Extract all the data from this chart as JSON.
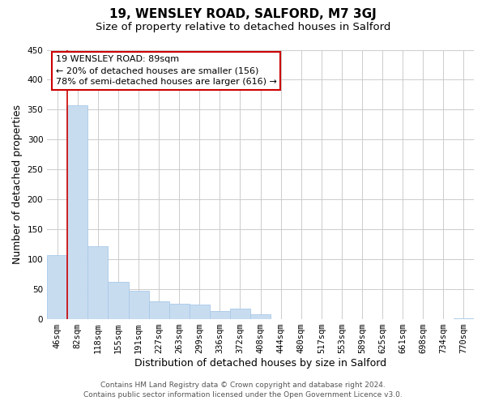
{
  "title": "19, WENSLEY ROAD, SALFORD, M7 3GJ",
  "subtitle": "Size of property relative to detached houses in Salford",
  "xlabel": "Distribution of detached houses by size in Salford",
  "ylabel": "Number of detached properties",
  "categories": [
    "46sqm",
    "82sqm",
    "118sqm",
    "155sqm",
    "191sqm",
    "227sqm",
    "263sqm",
    "299sqm",
    "336sqm",
    "372sqm",
    "408sqm",
    "444sqm",
    "480sqm",
    "517sqm",
    "553sqm",
    "589sqm",
    "625sqm",
    "661sqm",
    "698sqm",
    "734sqm",
    "770sqm"
  ],
  "values": [
    107,
    357,
    122,
    62,
    48,
    30,
    26,
    25,
    14,
    18,
    8,
    0,
    0,
    0,
    0,
    0,
    0,
    0,
    0,
    0,
    2
  ],
  "bar_color": "#c8dcf0",
  "bar_edge_color": "#a8c8e8",
  "marker_line_color": "#cc0000",
  "annotation_text_line1": "19 WENSLEY ROAD: 89sqm",
  "annotation_text_line2": "← 20% of detached houses are smaller (156)",
  "annotation_text_line3": "78% of semi-detached houses are larger (616) →",
  "annotation_box_color": "#ffffff",
  "annotation_border_color": "#cc0000",
  "ylim": [
    0,
    450
  ],
  "yticks": [
    0,
    50,
    100,
    150,
    200,
    250,
    300,
    350,
    400,
    450
  ],
  "footer_line1": "Contains HM Land Registry data © Crown copyright and database right 2024.",
  "footer_line2": "Contains public sector information licensed under the Open Government Licence v3.0.",
  "background_color": "#ffffff",
  "grid_color": "#cccccc",
  "title_fontsize": 11,
  "subtitle_fontsize": 9.5,
  "axis_label_fontsize": 9,
  "tick_fontsize": 7.5,
  "annotation_fontsize": 8,
  "footer_fontsize": 6.5
}
